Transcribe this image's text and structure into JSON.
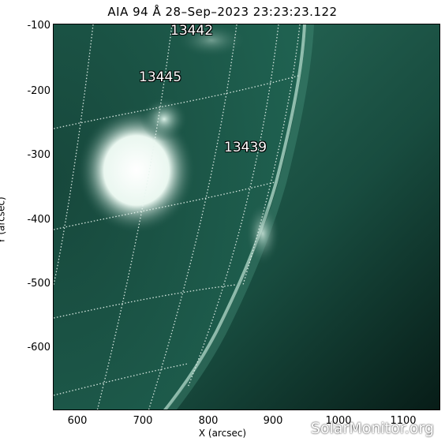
{
  "title": "AIA 94 Å 28–Sep–2023 23:23:23.122",
  "xlabel": "X (arcsec)",
  "ylabel": "Y (arcsec)",
  "x_ticks": [
    "600",
    "700",
    "800",
    "900",
    "1000",
    "1100"
  ],
  "y_ticks": [
    "-100",
    "-200",
    "-300",
    "-400",
    "-500",
    "-600"
  ],
  "active_regions": [
    "13442",
    "13445",
    "13439"
  ],
  "watermark": "SolarMonitor.org",
  "colors": {
    "disk": "#1a5446",
    "bright": "#e8f5ef",
    "space": "#0b2a22"
  }
}
